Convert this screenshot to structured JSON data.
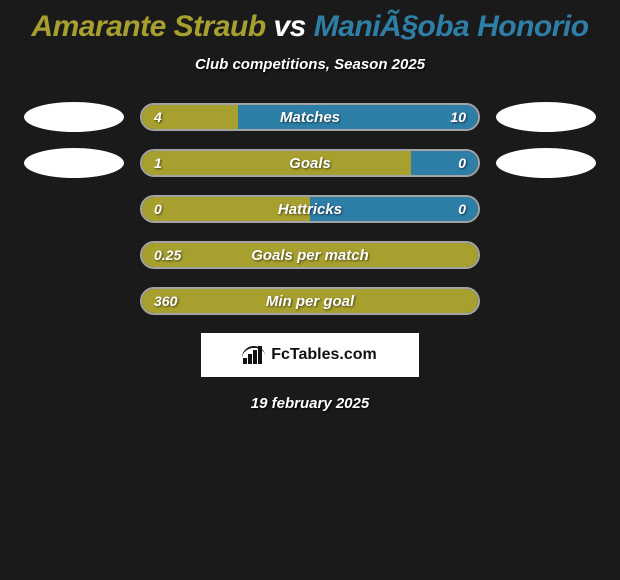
{
  "title": {
    "player1": "Amarante Straub",
    "vs": "vs",
    "player2": "ManiÃ§oba Honorio",
    "player1_color": "#a8a02e",
    "vs_color": "#ffffff",
    "player2_color": "#2e7fa8"
  },
  "subtitle": "Club competitions, Season 2025",
  "colors": {
    "left": "#a8a02e",
    "right": "#2e7fa8",
    "background": "#1a1a1a",
    "bar_border": "rgba(255,255,255,0.6)"
  },
  "stats": [
    {
      "label": "Matches",
      "left_value": "4",
      "right_value": "10",
      "left_width_pct": 28.6,
      "right_width_pct": 71.4,
      "show_avatars": true
    },
    {
      "label": "Goals",
      "left_value": "1",
      "right_value": "0",
      "left_width_pct": 80,
      "right_width_pct": 20,
      "show_avatars": true
    },
    {
      "label": "Hattricks",
      "left_value": "0",
      "right_value": "0",
      "left_width_pct": 50,
      "right_width_pct": 50,
      "show_avatars": false
    },
    {
      "label": "Goals per match",
      "left_value": "0.25",
      "right_value": "",
      "left_width_pct": 100,
      "right_width_pct": 0,
      "show_avatars": false
    },
    {
      "label": "Min per goal",
      "left_value": "360",
      "right_value": "",
      "left_width_pct": 100,
      "right_width_pct": 0,
      "show_avatars": false
    }
  ],
  "logo_text": "FcTables.com",
  "date": "19 february 2025"
}
